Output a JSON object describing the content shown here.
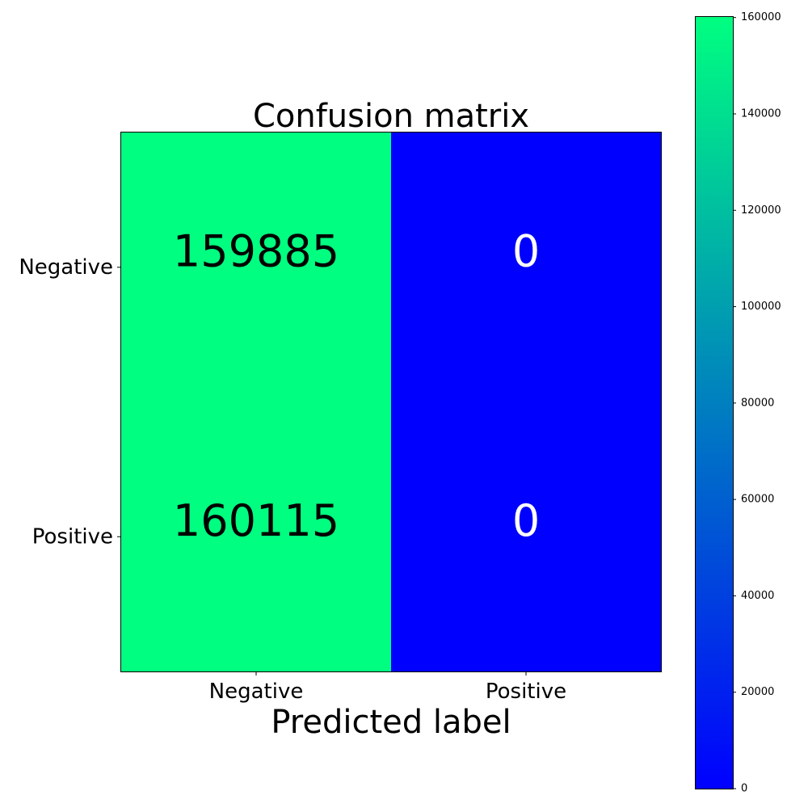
{
  "chart_data": {
    "type": "heatmap",
    "title": "Confusion matrix",
    "xlabel": "Predicted label",
    "ylabel": "",
    "x_categories": [
      "Negative",
      "Positive"
    ],
    "y_categories": [
      "Negative",
      "Positive"
    ],
    "values": [
      [
        159885,
        0
      ],
      [
        160115,
        0
      ]
    ],
    "cell_text_colors": [
      [
        "#000000",
        "#ffffff"
      ],
      [
        "#000000",
        "#ffffff"
      ]
    ],
    "colormap": "winter",
    "color_low": "#0000ff",
    "color_high": "#00ff80",
    "colorbar": {
      "range": [
        0,
        160115
      ],
      "ticks": [
        0,
        20000,
        40000,
        60000,
        80000,
        100000,
        120000,
        140000,
        160000
      ],
      "tick_labels": [
        "0",
        "20000",
        "40000",
        "60000",
        "80000",
        "100000",
        "120000",
        "140000",
        "160000"
      ]
    },
    "grid": false
  }
}
